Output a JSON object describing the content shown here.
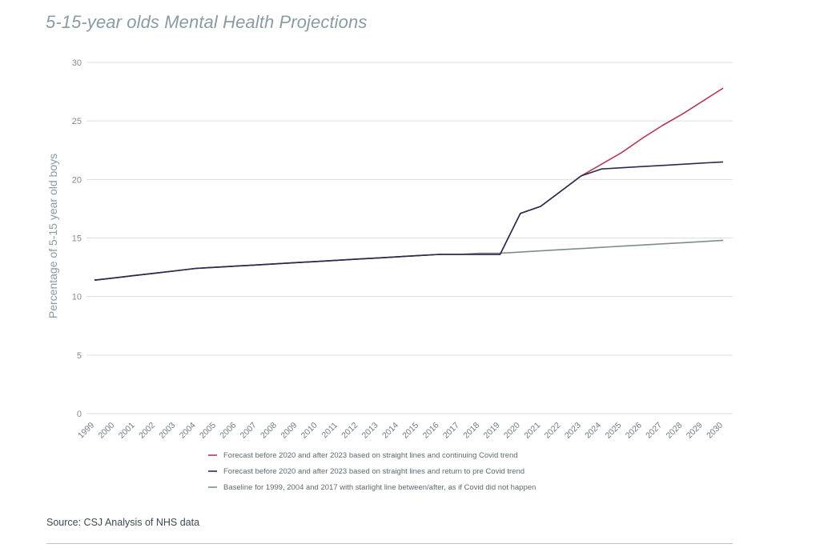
{
  "title": "5-15-year olds Mental Health Projections",
  "source": "Source: CSJ Analysis of NHS data",
  "colors": {
    "forecast_covid": "#b23a55",
    "forecast_pre": "#2b2a4c",
    "baseline": "#7f8c8d",
    "grid": "#d9dfe2",
    "text": "#8a9ba3"
  },
  "chart_data": {
    "type": "line",
    "title": "5-15-year olds Mental Health Projections",
    "xlabel": "",
    "ylabel": "Percentage of 5-15 year old boys",
    "x": [
      "1999",
      "2000",
      "2001",
      "2002",
      "2003",
      "2004",
      "2005",
      "2006",
      "2007",
      "2008",
      "2009",
      "2010",
      "2011",
      "2012",
      "2013",
      "2014",
      "2015",
      "2016",
      "2017",
      "2018",
      "2019",
      "2020",
      "2021",
      "2022",
      "2023",
      "2024",
      "2025",
      "2026",
      "2027",
      "2028",
      "2029",
      "2030"
    ],
    "ylim": [
      0,
      30
    ],
    "yticks": [
      0,
      5,
      10,
      15,
      20,
      25,
      30
    ],
    "grid": "horizontal",
    "legend_position": "bottom",
    "series": [
      {
        "name": "Forecast before 2020 and after 2023 based on straight lines and continuing Covid trend",
        "color": "#b23a55",
        "values": [
          11.4,
          11.6,
          11.8,
          12.0,
          12.2,
          12.4,
          12.5,
          12.6,
          12.7,
          12.8,
          12.9,
          13.0,
          13.1,
          13.2,
          13.3,
          13.4,
          13.5,
          13.6,
          13.6,
          13.6,
          13.6,
          17.1,
          17.7,
          19.0,
          20.3,
          21.3,
          22.3,
          23.5,
          24.6,
          25.6,
          26.7,
          27.8
        ]
      },
      {
        "name": "Forecast before 2020 and after 2023 based on straight lines and return to pre Covid trend",
        "color": "#2b2a4c",
        "values": [
          11.4,
          11.6,
          11.8,
          12.0,
          12.2,
          12.4,
          12.5,
          12.6,
          12.7,
          12.8,
          12.9,
          13.0,
          13.1,
          13.2,
          13.3,
          13.4,
          13.5,
          13.6,
          13.6,
          13.6,
          13.6,
          17.1,
          17.7,
          19.0,
          20.3,
          20.9,
          21.0,
          21.1,
          21.2,
          21.3,
          21.4,
          21.5
        ]
      },
      {
        "name": "Baseline for 1999, 2004 and 2017 with starlight line between/after, as if Covid did not happen",
        "color": "#7f8c8d",
        "values": [
          11.4,
          11.6,
          11.8,
          12.0,
          12.2,
          12.4,
          12.5,
          12.6,
          12.7,
          12.8,
          12.9,
          13.0,
          13.1,
          13.2,
          13.3,
          13.4,
          13.5,
          13.6,
          13.6,
          13.7,
          13.7,
          13.8,
          13.9,
          14.0,
          14.1,
          14.2,
          14.3,
          14.4,
          14.5,
          14.6,
          14.7,
          14.8
        ]
      }
    ]
  }
}
